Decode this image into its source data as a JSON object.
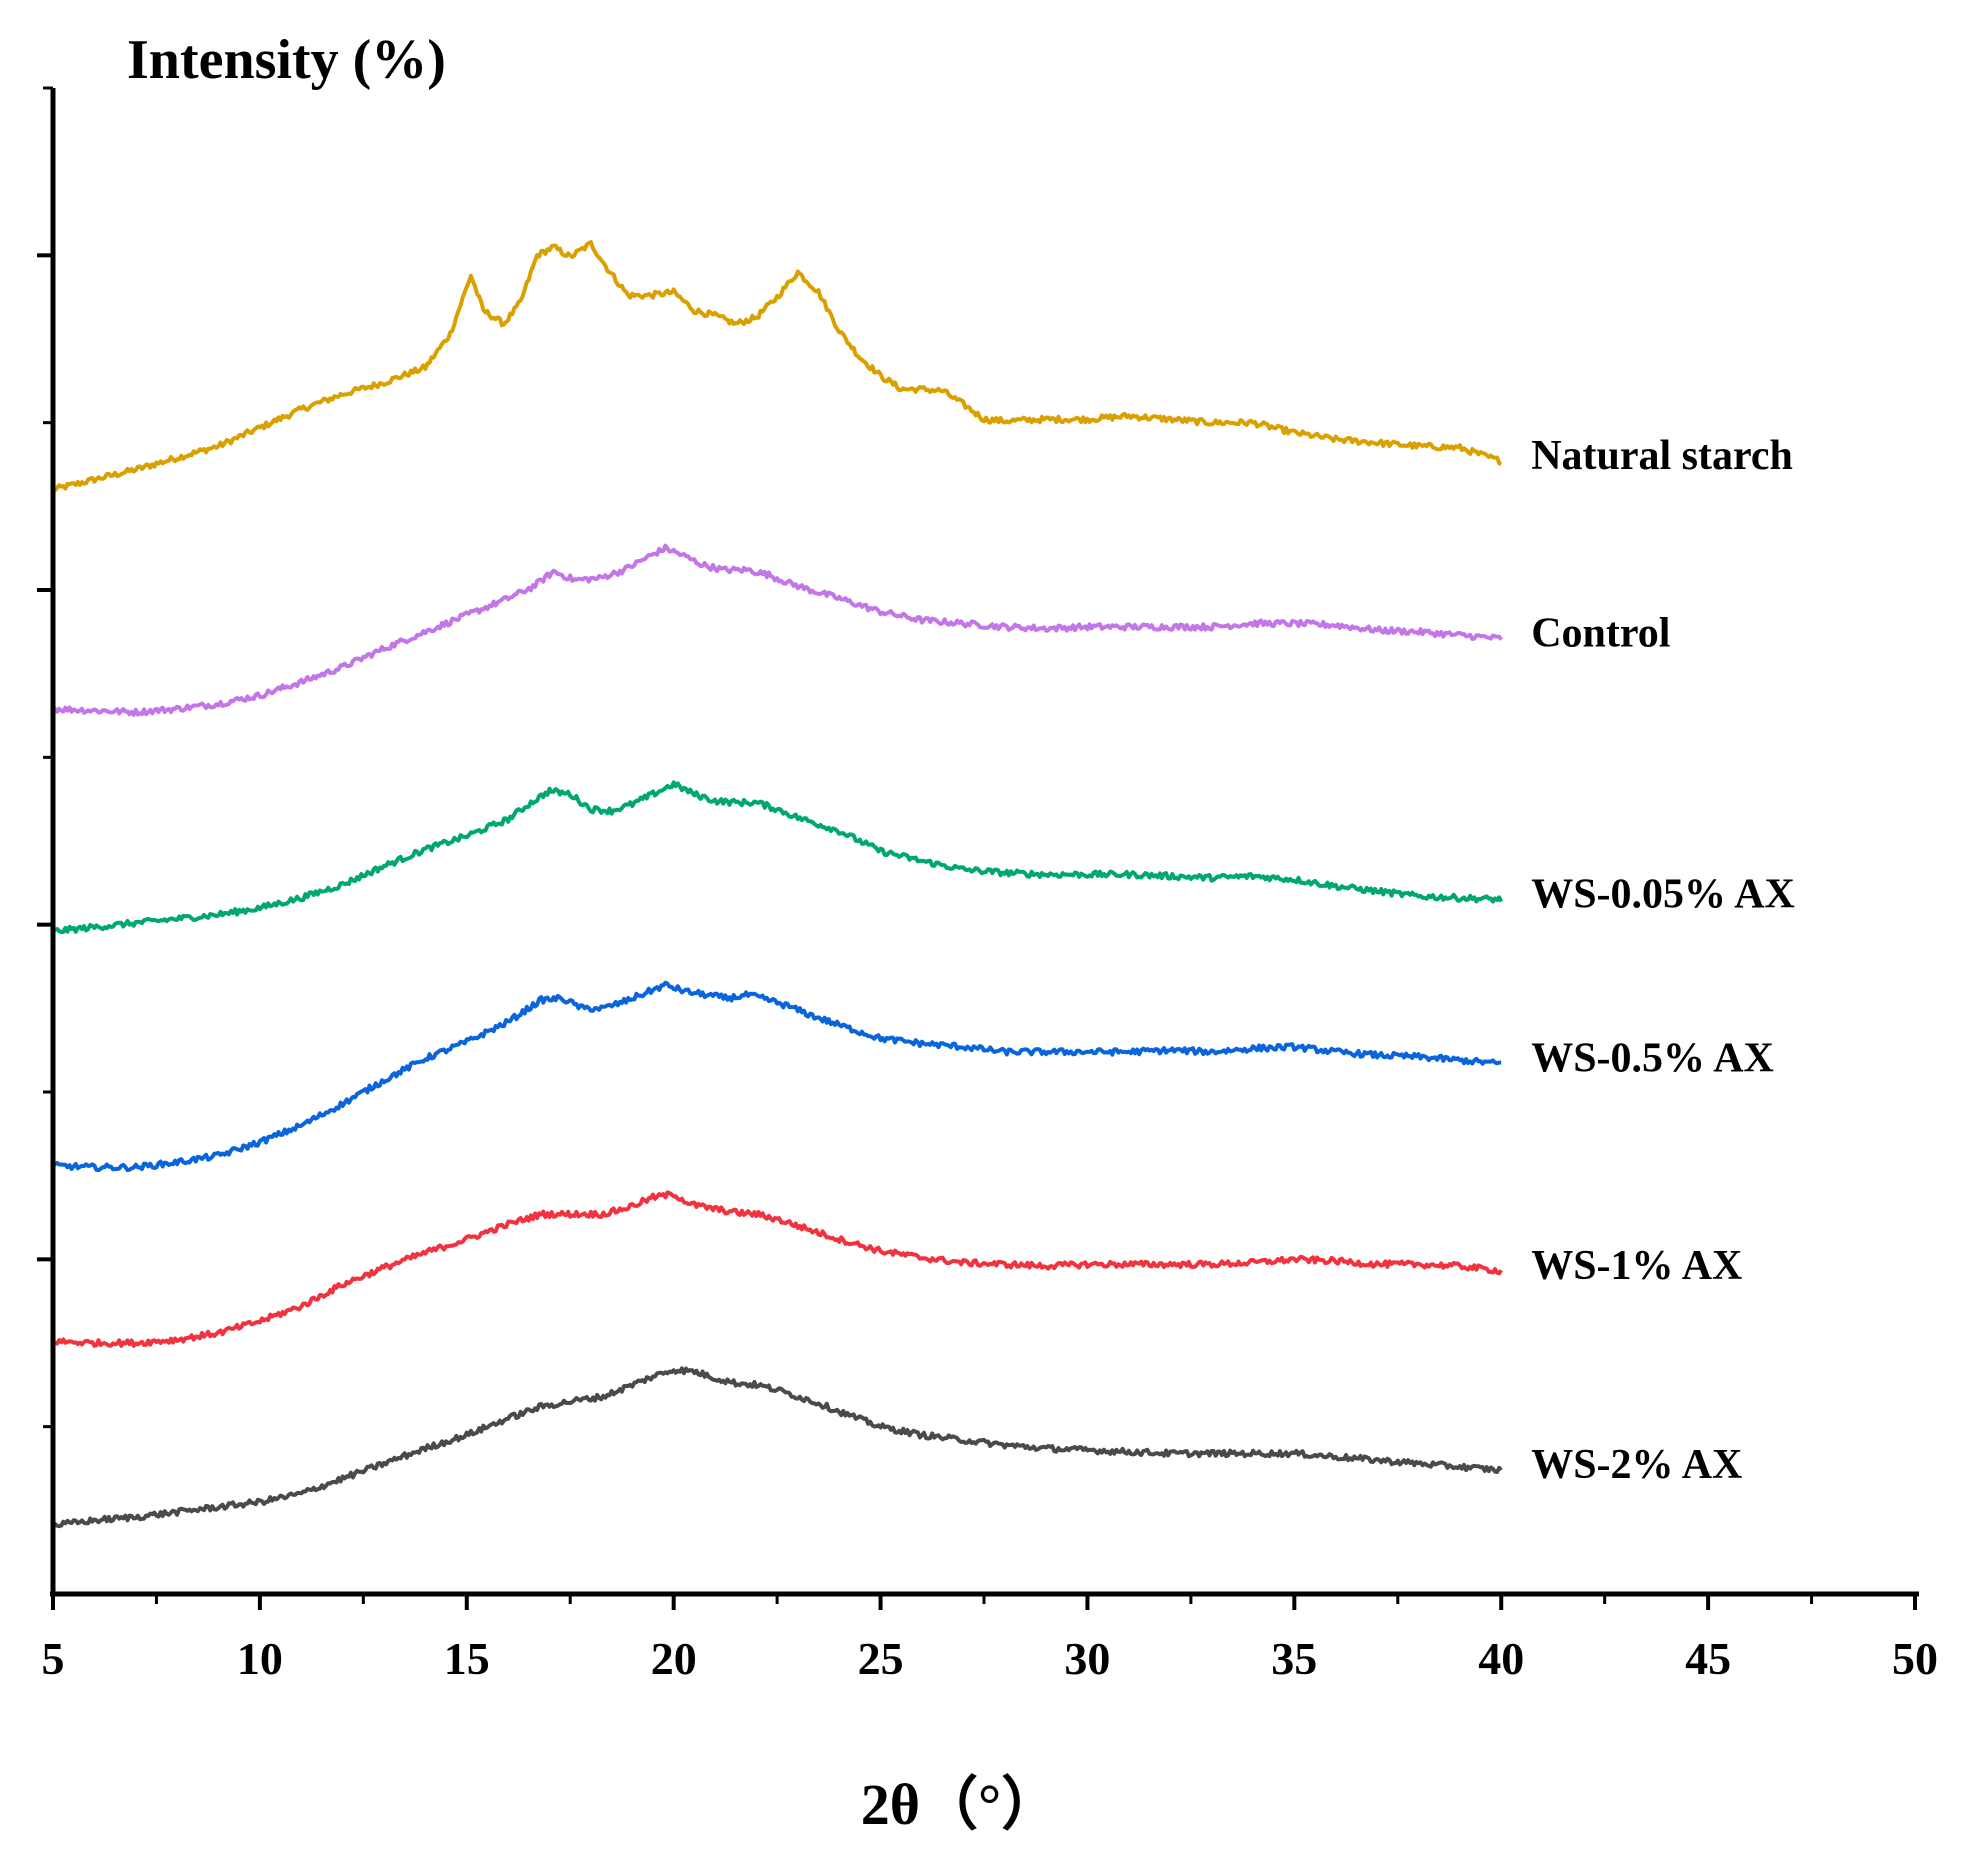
{
  "chart_data": {
    "type": "line",
    "title": "",
    "ylabel": "Intensity (%)",
    "xlabel": "2θ（°）",
    "xlim": [
      5,
      50
    ],
    "ylim": [
      0,
      9
    ],
    "x_ticks": [
      5,
      10,
      15,
      20,
      25,
      30,
      35,
      40,
      45,
      50
    ],
    "y_ticks_labeled": false,
    "grid": false,
    "legend": "inline-right",
    "series": [
      {
        "name": "Natural starch",
        "color": "#D9A000",
        "x": [
          5,
          7,
          9,
          10,
          11,
          12,
          13,
          14,
          14.6,
          15.1,
          15.4,
          15.9,
          16.3,
          16.7,
          17.1,
          17.5,
          18.0,
          18.4,
          18.9,
          19.4,
          20.0,
          20.5,
          21.0,
          21.5,
          22.0,
          22.5,
          23.0,
          23.5,
          24.0,
          24.5,
          25.0,
          25.5,
          26.0,
          26.5,
          27.0,
          27.5,
          28.0,
          29.0,
          30.0,
          31.0,
          32.0,
          33.0,
          34.0,
          35.0,
          36.0,
          37.0,
          38.0,
          39.0,
          40.0
        ],
        "values": [
          6.6,
          6.72,
          6.86,
          6.97,
          7.08,
          7.17,
          7.24,
          7.33,
          7.53,
          7.88,
          7.67,
          7.59,
          7.72,
          8.0,
          8.05,
          7.99,
          8.07,
          7.92,
          7.76,
          7.76,
          7.78,
          7.67,
          7.64,
          7.59,
          7.63,
          7.75,
          7.9,
          7.78,
          7.55,
          7.39,
          7.28,
          7.2,
          7.2,
          7.19,
          7.11,
          7.02,
          7.01,
          7.02,
          7.02,
          7.04,
          7.02,
          7.0,
          7.0,
          6.94,
          6.9,
          6.88,
          6.86,
          6.85,
          6.77
        ]
      },
      {
        "name": "Control",
        "color": "#C276E8",
        "x": [
          5,
          6,
          7,
          8,
          9,
          10,
          11,
          12,
          13,
          14,
          15,
          16,
          16.6,
          17.1,
          17.6,
          18.2,
          18.8,
          19.4,
          19.8,
          20.2,
          20.7,
          21.2,
          21.8,
          22.3,
          22.8,
          23.3,
          24.0,
          25.0,
          26.0,
          27.0,
          28.0,
          29.0,
          30.0,
          31.0,
          32.0,
          33.0,
          34.0,
          35.0,
          36.0,
          37.0,
          38.0,
          39.0,
          40.0
        ],
        "values": [
          5.29,
          5.28,
          5.27,
          5.29,
          5.32,
          5.37,
          5.45,
          5.54,
          5.65,
          5.75,
          5.85,
          5.95,
          6.02,
          6.11,
          6.06,
          6.07,
          6.12,
          6.2,
          6.25,
          6.21,
          6.15,
          6.12,
          6.12,
          6.09,
          6.04,
          6.0,
          5.95,
          5.87,
          5.82,
          5.8,
          5.78,
          5.77,
          5.78,
          5.78,
          5.78,
          5.78,
          5.8,
          5.8,
          5.79,
          5.76,
          5.75,
          5.73,
          5.71
        ]
      },
      {
        "name": "WS-0.05% AX",
        "color": "#00A86B",
        "x": [
          5,
          7,
          9,
          10,
          11,
          12,
          13,
          14,
          15,
          16,
          16.5,
          17.0,
          17.5,
          18.0,
          18.5,
          19.0,
          19.5,
          20.0,
          20.5,
          21.0,
          21.5,
          22.0,
          22.5,
          23.0,
          23.5,
          24.0,
          25.0,
          26.0,
          27.0,
          28.0,
          29.0,
          30.0,
          31.0,
          32.0,
          33.0,
          34.0,
          35.0,
          36.0,
          37.0,
          38.0,
          39.0,
          40.0
        ],
        "values": [
          3.96,
          4.01,
          4.06,
          4.1,
          4.16,
          4.24,
          4.35,
          4.45,
          4.53,
          4.63,
          4.72,
          4.8,
          4.78,
          4.69,
          4.68,
          4.72,
          4.78,
          4.84,
          4.78,
          4.74,
          4.73,
          4.73,
          4.69,
          4.64,
          4.6,
          4.56,
          4.44,
          4.38,
          4.33,
          4.31,
          4.3,
          4.3,
          4.3,
          4.29,
          4.28,
          4.29,
          4.27,
          4.23,
          4.2,
          4.17,
          4.16,
          4.15
        ]
      },
      {
        "name": "WS-0.5% AX",
        "color": "#0A64DC",
        "x": [
          5,
          6,
          7,
          8,
          9,
          10,
          11,
          12,
          13,
          14,
          15,
          16,
          16.8,
          17.3,
          17.8,
          18.3,
          18.8,
          19.3,
          19.8,
          20.3,
          20.8,
          21.3,
          21.8,
          22.3,
          22.8,
          23.3,
          24.0,
          25.0,
          26.0,
          27.0,
          28.0,
          29.0,
          30.0,
          31.0,
          32.0,
          33.0,
          34.0,
          35.0,
          36.0,
          37.0,
          38.0,
          39.0,
          40.0
        ],
        "values": [
          2.56,
          2.55,
          2.55,
          2.58,
          2.62,
          2.7,
          2.8,
          2.93,
          3.07,
          3.2,
          3.3,
          3.42,
          3.55,
          3.56,
          3.5,
          3.5,
          3.54,
          3.59,
          3.64,
          3.6,
          3.58,
          3.56,
          3.58,
          3.55,
          3.51,
          3.46,
          3.4,
          3.32,
          3.29,
          3.27,
          3.24,
          3.24,
          3.24,
          3.24,
          3.25,
          3.24,
          3.26,
          3.27,
          3.24,
          3.22,
          3.21,
          3.19,
          3.17
        ]
      },
      {
        "name": "WS-1% AX",
        "color": "#F0333F",
        "x": [
          5,
          6,
          7,
          8,
          9,
          10,
          11,
          12,
          13,
          14,
          15,
          16,
          16.8,
          17.5,
          18.3,
          18.9,
          19.5,
          20.0,
          20.4,
          21.0,
          21.5,
          22.0,
          22.5,
          23.0,
          23.5,
          24.0,
          25.0,
          26.0,
          27.0,
          28.0,
          29.0,
          30.0,
          31.0,
          32.0,
          33.0,
          34.0,
          35.0,
          36.0,
          37.0,
          38.0,
          39.0,
          40.0
        ],
        "values": [
          1.51,
          1.5,
          1.5,
          1.52,
          1.56,
          1.63,
          1.72,
          1.85,
          1.95,
          2.04,
          2.12,
          2.21,
          2.27,
          2.27,
          2.27,
          2.31,
          2.37,
          2.39,
          2.33,
          2.3,
          2.28,
          2.27,
          2.24,
          2.2,
          2.16,
          2.12,
          2.05,
          2.01,
          1.98,
          1.97,
          1.96,
          1.97,
          1.97,
          1.97,
          1.97,
          1.98,
          2.0,
          1.99,
          1.97,
          1.97,
          1.96,
          1.93
        ]
      },
      {
        "name": "WS-2% AX",
        "color": "#4A4A4A",
        "x": [
          5,
          6,
          7,
          8,
          9,
          10,
          11,
          12,
          13,
          14,
          15,
          16,
          16.8,
          17.5,
          18.3,
          18.9,
          19.5,
          20.0,
          20.5,
          21.0,
          21.5,
          22.0,
          22.5,
          23.0,
          23.5,
          24.0,
          25.0,
          26.0,
          27.0,
          28.0,
          29.0,
          30.0,
          31.0,
          32.0,
          33.0,
          34.0,
          35.0,
          36.0,
          37.0,
          38.0,
          39.0,
          40.0
        ],
        "values": [
          0.41,
          0.44,
          0.46,
          0.49,
          0.52,
          0.55,
          0.6,
          0.69,
          0.78,
          0.87,
          0.95,
          1.05,
          1.12,
          1.15,
          1.18,
          1.24,
          1.3,
          1.34,
          1.33,
          1.29,
          1.26,
          1.25,
          1.22,
          1.18,
          1.14,
          1.09,
          1.0,
          0.95,
          0.92,
          0.89,
          0.87,
          0.86,
          0.85,
          0.84,
          0.84,
          0.84,
          0.84,
          0.82,
          0.8,
          0.78,
          0.76,
          0.74
        ]
      }
    ]
  }
}
